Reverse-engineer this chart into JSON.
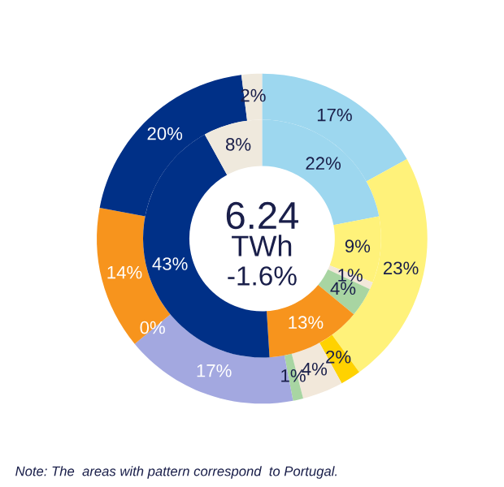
{
  "chart_data": {
    "type": "donut",
    "series": [
      {
        "values": [
          17,
          23,
          2,
          4,
          1,
          17,
          0,
          14,
          20,
          2
        ],
        "value_labels": [
          "17%",
          "23%",
          "2%",
          "4%",
          "1%",
          "17%",
          "0%",
          "14%",
          "20%",
          "2%"
        ],
        "colors": [
          "#9dd7ef",
          "#fff27a",
          "#ffd200",
          "#f2e8da",
          "#a8d5a2",
          "#a3a8e0",
          "#555555",
          "#f7941d",
          "#003087",
          "#efe9dd"
        ]
      },
      {
        "values": [
          22,
          9,
          1,
          4,
          13,
          43,
          8
        ],
        "value_labels": [
          "22%",
          "9%",
          "1%",
          "4%",
          "13%",
          "43%",
          "8%"
        ],
        "colors": [
          "#9dd7ef",
          "#fff27a",
          "#f2e8da",
          "#a8d5a2",
          "#f7941d",
          "#003087",
          "#efe9dd"
        ]
      }
    ],
    "annotations": [
      "6.24",
      "TWh",
      "-1.6%",
      "Note: The  areas with pattern correspond  to Portugal."
    ]
  }
}
